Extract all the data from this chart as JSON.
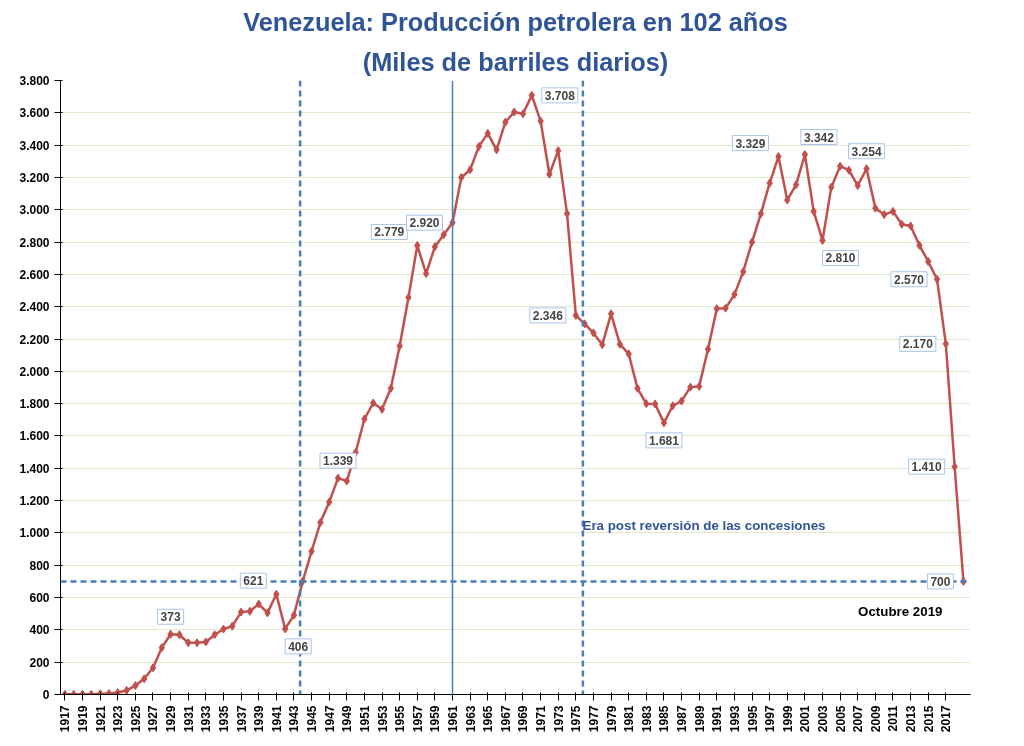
{
  "chart_data": {
    "type": "line",
    "title": "Venezuela: Producción petrolera en 102 años",
    "subtitle": "(Miles de barriles diarios)",
    "x": [
      1917,
      1918,
      1919,
      1920,
      1921,
      1922,
      1923,
      1924,
      1925,
      1926,
      1927,
      1928,
      1929,
      1930,
      1931,
      1932,
      1933,
      1934,
      1935,
      1936,
      1937,
      1938,
      1939,
      1940,
      1941,
      1942,
      1943,
      1944,
      1945,
      1946,
      1947,
      1948,
      1949,
      1950,
      1951,
      1952,
      1953,
      1954,
      1955,
      1956,
      1957,
      1958,
      1959,
      1960,
      1961,
      1962,
      1963,
      1964,
      1965,
      1966,
      1967,
      1968,
      1969,
      1970,
      1971,
      1972,
      1973,
      1974,
      1975,
      1976,
      1977,
      1978,
      1979,
      1980,
      1981,
      1982,
      1983,
      1984,
      1985,
      1986,
      1987,
      1988,
      1989,
      1990,
      1991,
      1992,
      1993,
      1994,
      1995,
      1996,
      1997,
      1998,
      1999,
      2000,
      2001,
      2002,
      2003,
      2004,
      2005,
      2006,
      2007,
      2008,
      2009,
      2010,
      2011,
      2012,
      2013,
      2014,
      2015,
      2016,
      2017,
      2018,
      2019
    ],
    "series": [
      {
        "color": "#c0504d",
        "values": [
          1,
          1,
          2,
          1,
          4,
          6,
          12,
          25,
          55,
          97,
          165,
          290,
          373,
          370,
          320,
          320,
          325,
          370,
          405,
          423,
          510,
          515,
          560,
          505,
          621,
          406,
          491,
          702,
          886,
          1064,
          1191,
          1339,
          1321,
          1498,
          1705,
          1804,
          1765,
          1895,
          2157,
          2457,
          2779,
          2605,
          2771,
          2846,
          2920,
          3200,
          3248,
          3392,
          3473,
          3371,
          3542,
          3605,
          3594,
          3708,
          3549,
          3220,
          3366,
          2976,
          2346,
          2294,
          2238,
          2165,
          2356,
          2168,
          2108,
          1895,
          1800,
          1798,
          1681,
          1787,
          1816,
          1902,
          1907,
          2137,
          2388,
          2391,
          2475,
          2617,
          2800,
          2975,
          3165,
          3329,
          3060,
          3155,
          3342,
          2990,
          2810,
          3140,
          3270,
          3245,
          3150,
          3254,
          3010,
          2970,
          2990,
          2910,
          2900,
          2780,
          2680,
          2570,
          2170,
          1410,
          700
        ],
        "value_labels": [
          null,
          null,
          null,
          null,
          null,
          null,
          null,
          null,
          null,
          null,
          null,
          null,
          "373",
          null,
          null,
          null,
          null,
          null,
          null,
          null,
          null,
          null,
          null,
          null,
          "621",
          "406",
          null,
          null,
          null,
          null,
          null,
          "1.339",
          null,
          null,
          null,
          null,
          null,
          null,
          null,
          null,
          "2.779",
          null,
          null,
          null,
          "2.920",
          null,
          null,
          null,
          null,
          null,
          null,
          null,
          null,
          "3.708",
          null,
          null,
          null,
          null,
          "2.346",
          null,
          null,
          null,
          null,
          null,
          null,
          null,
          null,
          null,
          "1.681",
          null,
          null,
          null,
          null,
          null,
          null,
          null,
          null,
          null,
          null,
          null,
          null,
          "3.329",
          null,
          null,
          "3.342",
          null,
          "2.810",
          null,
          null,
          null,
          null,
          "3.254",
          null,
          null,
          null,
          null,
          null,
          null,
          null,
          "2.570",
          "2.170",
          "1.410",
          "700"
        ]
      }
    ],
    "marker": "diamond",
    "line_style": "solid",
    "grid": "y",
    "xlim": [
      1916.5,
      2019.8
    ],
    "xticks": [
      1917,
      1919,
      1921,
      1923,
      1925,
      1927,
      1929,
      1931,
      1933,
      1935,
      1937,
      1939,
      1941,
      1943,
      1945,
      1947,
      1949,
      1951,
      1953,
      1955,
      1957,
      1959,
      1961,
      1963,
      1965,
      1967,
      1969,
      1971,
      1973,
      1975,
      1977,
      1979,
      1981,
      1983,
      1985,
      1987,
      1989,
      1991,
      1993,
      1995,
      1997,
      1999,
      2001,
      2003,
      2005,
      2007,
      2009,
      2011,
      2013,
      2015,
      2017
    ],
    "ylim": [
      0,
      3800
    ],
    "yticks": [
      0,
      {
        "value": 200,
        "label": "200"
      },
      {
        "value": 400,
        "label": "400"
      },
      {
        "value": 600,
        "label": "600"
      },
      {
        "value": 800,
        "label": "800"
      },
      {
        "value": 1000,
        "label": "1.000"
      },
      {
        "value": 1200,
        "label": "1.200"
      },
      {
        "value": 1400,
        "label": "1.400"
      },
      {
        "value": 1600,
        "label": "1.600"
      },
      {
        "value": 1800,
        "label": "1.800"
      },
      {
        "value": 2000,
        "label": "2.000"
      },
      {
        "value": 2200,
        "label": "2.200"
      },
      {
        "value": 2400,
        "label": "2.400"
      },
      {
        "value": 2600,
        "label": "2.600"
      },
      {
        "value": 2800,
        "label": "2.800"
      },
      {
        "value": 3000,
        "label": "3.000"
      },
      {
        "value": 3200,
        "label": "3.200"
      },
      {
        "value": 3400,
        "label": "3.400"
      },
      {
        "value": 3600,
        "label": "3.600"
      },
      {
        "value": 3800,
        "label": "3.800"
      }
    ],
    "ref_lines": [
      {
        "axis": "y",
        "value": 700,
        "color": "#4a7ebb",
        "line_style": "dashed"
      },
      {
        "axis": "x",
        "value": 1943.7,
        "color": "#4a7ebb",
        "line_style": "dashed"
      },
      {
        "axis": "x",
        "value": 1961,
        "color": "#4a7ebb",
        "line_style": "solid"
      },
      {
        "axis": "x",
        "value": 1975.8,
        "color": "#4a7ebb",
        "line_style": "dashed"
      }
    ],
    "annotations": [
      "Era post reversión de las concesiones",
      "Octubre 2019"
    ]
  }
}
